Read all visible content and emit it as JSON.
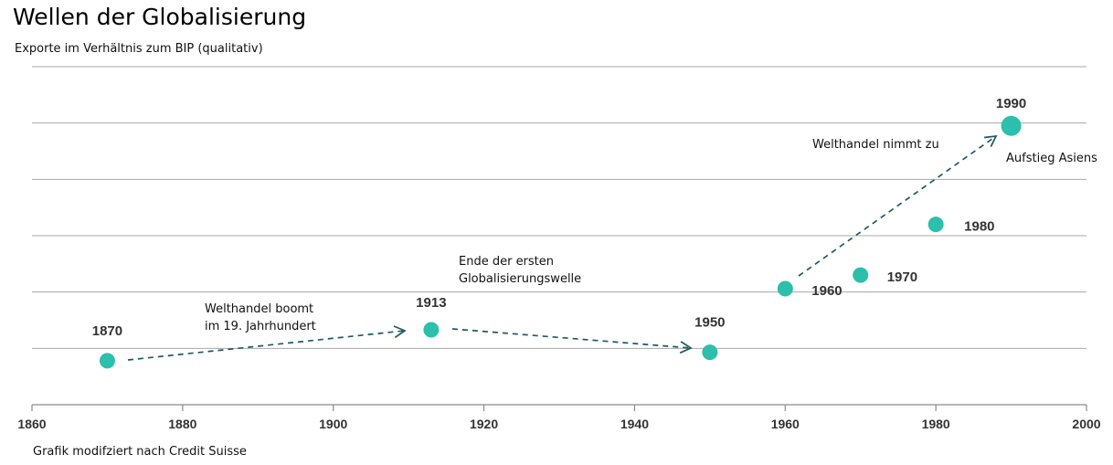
{
  "title": "Wellen der Globalisierung",
  "subtitle": "Exporte im Verhältnis zum BIP (qualitativ)",
  "source": "Grafik modifziert nach Credit Suisse",
  "colors": {
    "point": "#2bbfac",
    "arrow": "#1f5a63",
    "grid": "#a8a8a8"
  },
  "chart_data": {
    "type": "scatter",
    "xlim": [
      1860,
      2000
    ],
    "x_ticks": [
      "1860",
      "1880",
      "1900",
      "1920",
      "1940",
      "1960",
      "1980",
      "2000"
    ],
    "ylim": [
      0,
      6
    ],
    "grid": true,
    "points": [
      {
        "x": 1870,
        "y": 0.78,
        "label": "1870"
      },
      {
        "x": 1913,
        "y": 1.33,
        "label": "1913"
      },
      {
        "x": 1950,
        "y": 0.93,
        "label": "1950"
      },
      {
        "x": 1960,
        "y": 2.06,
        "label": "1960"
      },
      {
        "x": 1970,
        "y": 2.3,
        "label": "1970"
      },
      {
        "x": 1980,
        "y": 3.2,
        "label": "1980"
      },
      {
        "x": 1990,
        "y": 4.95,
        "label": "1990"
      }
    ],
    "annotations": [
      {
        "lines": [
          "Welthandel boomt",
          "im 19. Jahrhundert"
        ]
      },
      {
        "lines": [
          "Ende der ersten",
          "Globalisierungswelle"
        ]
      },
      {
        "lines": [
          "Welthandel nimmt zu"
        ]
      },
      {
        "lines": [
          "Aufstieg Asiens"
        ]
      }
    ]
  }
}
